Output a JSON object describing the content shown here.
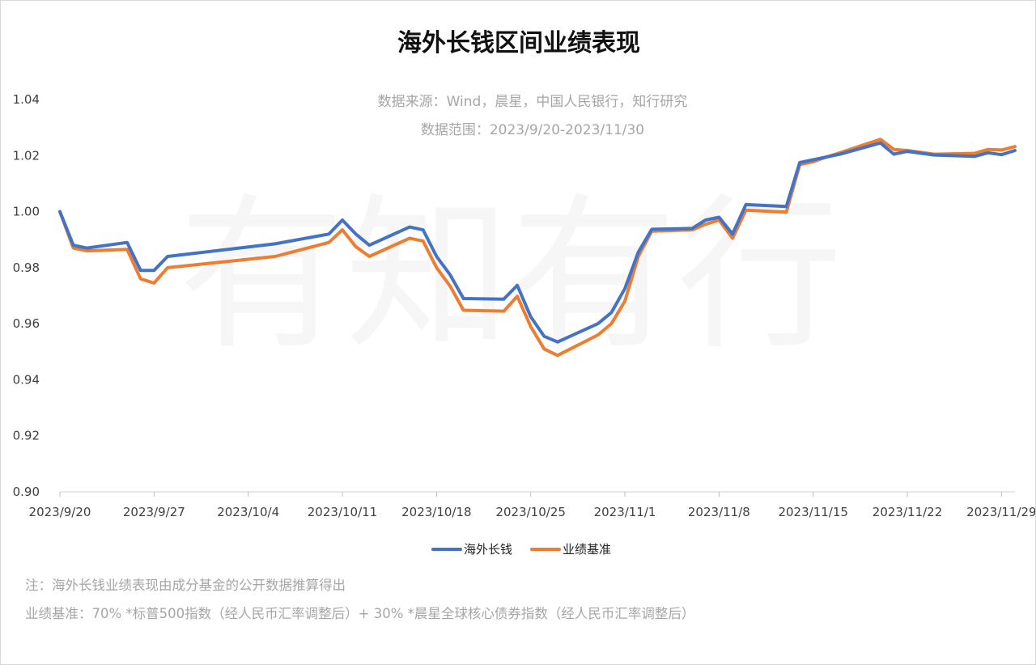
{
  "watermark": "有知有行",
  "notes": [
    "注：海外长钱业绩表现由成分基金的公开数据推算得出",
    "业绩基准：70% *标普500指数（经人民币汇率调整后）+ 30% *晨星全球核心债券指数（经人民币汇率调整后）"
  ],
  "colors": {
    "series1": "#4472c4",
    "series2": "#ed7d31",
    "axis": "#d9d9d9"
  },
  "chart_data": {
    "type": "line",
    "title": "海外长钱区间业绩表现",
    "subtitle_lines": [
      "数据来源：Wind，晨星，中国人民银行，知行研究",
      "数据范围：2023/9/20-2023/11/30"
    ],
    "xlabel": "",
    "ylabel": "",
    "ylim": [
      0.9,
      1.04
    ],
    "yticks": [
      "0.90",
      "0.92",
      "0.94",
      "0.96",
      "0.98",
      "1.00",
      "1.02",
      "1.04"
    ],
    "xlim": [
      "2023/9/20",
      "2023/11/30"
    ],
    "xticks": [
      "2023/9/20",
      "2023/9/27",
      "2023/10/4",
      "2023/10/11",
      "2023/10/18",
      "2023/10/25",
      "2023/11/1",
      "2023/11/8",
      "2023/11/15",
      "2023/11/22",
      "2023/11/29"
    ],
    "grid": false,
    "legend_position": "bottom-center",
    "series": [
      {
        "name": "海外长钱",
        "color": "#4472c4",
        "points": [
          [
            "2023/9/20",
            1.0
          ],
          [
            "2023/9/21",
            0.988
          ],
          [
            "2023/9/22",
            0.987
          ],
          [
            "2023/9/25",
            0.989
          ],
          [
            "2023/9/26",
            0.979
          ],
          [
            "2023/9/27",
            0.979
          ],
          [
            "2023/9/28",
            0.984
          ],
          [
            "2023/10/6",
            0.9885
          ],
          [
            "2023/10/10",
            0.992
          ],
          [
            "2023/10/11",
            0.997
          ],
          [
            "2023/10/12",
            0.992
          ],
          [
            "2023/10/13",
            0.988
          ],
          [
            "2023/10/16",
            0.9945
          ],
          [
            "2023/10/17",
            0.9935
          ],
          [
            "2023/10/18",
            0.984
          ],
          [
            "2023/10/19",
            0.9775
          ],
          [
            "2023/10/20",
            0.969
          ],
          [
            "2023/10/23",
            0.9688
          ],
          [
            "2023/10/24",
            0.9737
          ],
          [
            "2023/10/25",
            0.9625
          ],
          [
            "2023/10/26",
            0.9555
          ],
          [
            "2023/10/27",
            0.9535
          ],
          [
            "2023/10/30",
            0.96
          ],
          [
            "2023/10/31",
            0.964
          ],
          [
            "2023/11/1",
            0.9725
          ],
          [
            "2023/11/2",
            0.9855
          ],
          [
            "2023/11/3",
            0.9937
          ],
          [
            "2023/11/6",
            0.994
          ],
          [
            "2023/11/7",
            0.997
          ],
          [
            "2023/11/8",
            0.998
          ],
          [
            "2023/11/9",
            0.992
          ],
          [
            "2023/11/10",
            1.0025
          ],
          [
            "2023/11/13",
            1.0018
          ],
          [
            "2023/11/14",
            1.0175
          ],
          [
            "2023/11/15",
            1.0185
          ],
          [
            "2023/11/16",
            1.0195
          ],
          [
            "2023/11/17",
            1.0205
          ],
          [
            "2023/11/20",
            1.0245
          ],
          [
            "2023/11/21",
            1.0205
          ],
          [
            "2023/11/22",
            1.0215
          ],
          [
            "2023/11/24",
            1.0202
          ],
          [
            "2023/11/27",
            1.0197
          ],
          [
            "2023/11/28",
            1.021
          ],
          [
            "2023/11/29",
            1.0203
          ],
          [
            "2023/11/30",
            1.0218
          ]
        ]
      },
      {
        "name": "业绩基准",
        "color": "#ed7d31",
        "points": [
          [
            "2023/9/20",
            1.0
          ],
          [
            "2023/9/21",
            0.987
          ],
          [
            "2023/9/22",
            0.986
          ],
          [
            "2023/9/25",
            0.9865
          ],
          [
            "2023/9/26",
            0.976
          ],
          [
            "2023/9/27",
            0.9745
          ],
          [
            "2023/9/28",
            0.98
          ],
          [
            "2023/10/6",
            0.984
          ],
          [
            "2023/10/10",
            0.989
          ],
          [
            "2023/10/11",
            0.9935
          ],
          [
            "2023/10/12",
            0.9875
          ],
          [
            "2023/10/13",
            0.984
          ],
          [
            "2023/10/16",
            0.9905
          ],
          [
            "2023/10/17",
            0.9895
          ],
          [
            "2023/10/18",
            0.98
          ],
          [
            "2023/10/19",
            0.9735
          ],
          [
            "2023/10/20",
            0.9648
          ],
          [
            "2023/10/23",
            0.9645
          ],
          [
            "2023/10/24",
            0.9698
          ],
          [
            "2023/10/25",
            0.959
          ],
          [
            "2023/10/26",
            0.951
          ],
          [
            "2023/10/27",
            0.9487
          ],
          [
            "2023/10/30",
            0.956
          ],
          [
            "2023/10/31",
            0.96
          ],
          [
            "2023/11/1",
            0.968
          ],
          [
            "2023/11/2",
            0.984
          ],
          [
            "2023/11/3",
            0.993
          ],
          [
            "2023/11/6",
            0.9935
          ],
          [
            "2023/11/7",
            0.9955
          ],
          [
            "2023/11/8",
            0.997
          ],
          [
            "2023/11/9",
            0.9905
          ],
          [
            "2023/11/10",
            1.0005
          ],
          [
            "2023/11/13",
            0.9998
          ],
          [
            "2023/11/14",
            1.0168
          ],
          [
            "2023/11/15",
            1.0178
          ],
          [
            "2023/11/16",
            1.0195
          ],
          [
            "2023/11/17",
            1.021
          ],
          [
            "2023/11/20",
            1.0258
          ],
          [
            "2023/11/21",
            1.0222
          ],
          [
            "2023/11/22",
            1.0218
          ],
          [
            "2023/11/24",
            1.0205
          ],
          [
            "2023/11/27",
            1.0208
          ],
          [
            "2023/11/28",
            1.0222
          ],
          [
            "2023/11/29",
            1.022
          ],
          [
            "2023/11/30",
            1.0232
          ]
        ]
      }
    ]
  }
}
